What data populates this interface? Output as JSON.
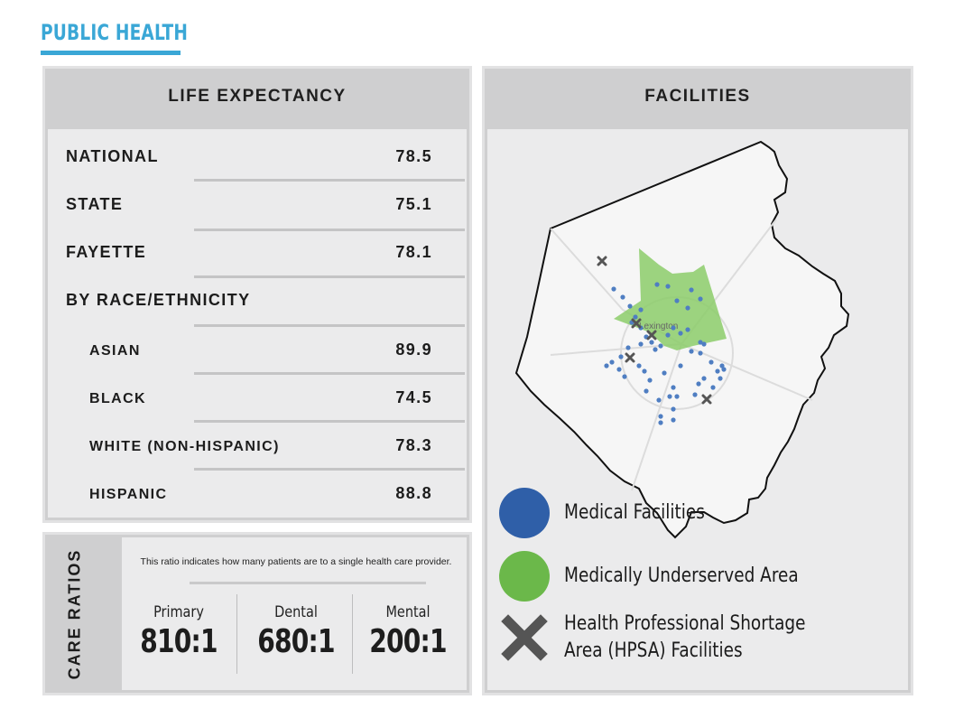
{
  "header": {
    "title": "PUBLIC HEALTH"
  },
  "life_expectancy": {
    "title": "LIFE EXPECTANCY",
    "rows": [
      {
        "label": "NATIONAL",
        "value": "78.5"
      },
      {
        "label": "STATE",
        "value": "75.1"
      },
      {
        "label": "FAYETTE",
        "value": "78.1"
      },
      {
        "label": "BY RACE/ETHNICITY",
        "value": ""
      },
      {
        "label": "ASIAN",
        "value": "89.9"
      },
      {
        "label": "BLACK",
        "value": "74.5"
      },
      {
        "label": "WHITE (NON-HISPANIC)",
        "value": "78.3"
      },
      {
        "label": "HISPANIC",
        "value": "88.8"
      }
    ]
  },
  "care_ratios": {
    "title": "CARE RATIOS",
    "note": "This ratio indicates how many patients are to a single health care provider.",
    "items": [
      {
        "name": "Primary",
        "value": "810:1"
      },
      {
        "name": "Dental",
        "value": "680:1"
      },
      {
        "name": "Mental",
        "value": "200:1"
      }
    ]
  },
  "facilities": {
    "title": "FACILITIES",
    "map_label": "Lexington",
    "legend": [
      {
        "label": "Medical Facilities",
        "color": "#2f5fa8",
        "icon": "blue-dot-icon"
      },
      {
        "label": "Medically Underserved Area",
        "color": "#6bb84a",
        "icon": "green-dot-icon"
      },
      {
        "label_line1": "Health Professional Shortage",
        "label_line2": "Area (HPSA) Facilities",
        "color": "#555555",
        "icon": "x-mark-icon"
      }
    ]
  },
  "colors": {
    "accent": "#3aa7d6",
    "panel_header": "#cfcfd0",
    "panel_body": "#ebebec",
    "medical": "#4f7ec2",
    "underserved": "#8ccc6a"
  }
}
